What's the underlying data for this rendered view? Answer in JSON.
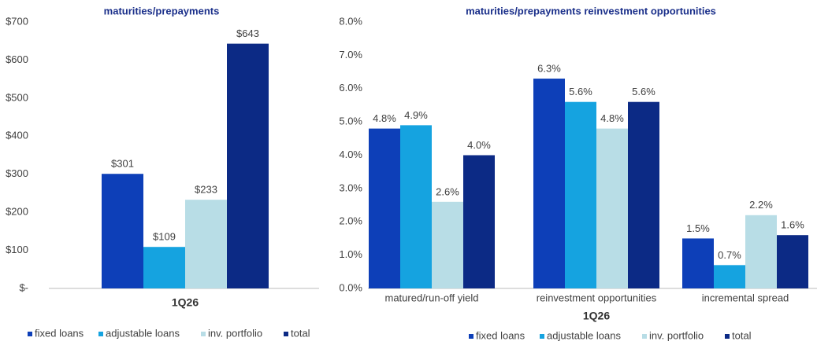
{
  "chart_data": [
    {
      "type": "bar",
      "title": "maturities/prepayments",
      "categories": [
        "1Q26"
      ],
      "series": [
        {
          "name": "fixed loans",
          "color": "#0d3fb8",
          "values": [
            301
          ],
          "value_labels": [
            "$301"
          ]
        },
        {
          "name": "adjustable loans",
          "color": "#15a3e0",
          "values": [
            109
          ],
          "value_labels": [
            "$109"
          ]
        },
        {
          "name": "inv. portfolio",
          "color": "#b8dde6",
          "values": [
            233
          ],
          "value_labels": [
            "$233"
          ]
        },
        {
          "name": "total",
          "color": "#0c2a85",
          "values": [
            643
          ],
          "value_labels": [
            "$643"
          ]
        }
      ],
      "ylim": [
        0,
        700
      ],
      "yticks": [
        {
          "value": 0,
          "label": "$-"
        },
        {
          "value": 100,
          "label": "$100"
        },
        {
          "value": 200,
          "label": "$200"
        },
        {
          "value": 300,
          "label": "$300"
        },
        {
          "value": 400,
          "label": "$400"
        },
        {
          "value": 500,
          "label": "$500"
        },
        {
          "value": 600,
          "label": "$600"
        },
        {
          "value": 700,
          "label": "$700"
        }
      ],
      "grid": false
    },
    {
      "type": "bar",
      "title": "maturities/prepayments reinvestment opportunities",
      "xlabel": "1Q26",
      "categories": [
        "matured/run-off yield",
        "reinvestment opportunities",
        "incremental spread"
      ],
      "series": [
        {
          "name": "fixed loans",
          "color": "#0d3fb8",
          "values": [
            4.8,
            6.3,
            1.5
          ],
          "value_labels": [
            "4.8%",
            "6.3%",
            "1.5%"
          ]
        },
        {
          "name": "adjustable loans",
          "color": "#15a3e0",
          "values": [
            4.9,
            5.6,
            0.7
          ],
          "value_labels": [
            "4.9%",
            "5.6%",
            "0.7%"
          ]
        },
        {
          "name": "inv. portfolio",
          "color": "#b8dde6",
          "values": [
            2.6,
            4.8,
            2.2
          ],
          "value_labels": [
            "2.6%",
            "4.8%",
            "2.2%"
          ]
        },
        {
          "name": "total",
          "color": "#0c2a85",
          "values": [
            4.0,
            5.6,
            1.6
          ],
          "value_labels": [
            "4.0%",
            "5.6%",
            "1.6%"
          ]
        }
      ],
      "ylim": [
        0,
        8
      ],
      "yticks": [
        {
          "value": 0,
          "label": "0.0%"
        },
        {
          "value": 1,
          "label": "1.0%"
        },
        {
          "value": 2,
          "label": "2.0%"
        },
        {
          "value": 3,
          "label": "3.0%"
        },
        {
          "value": 4,
          "label": "4.0%"
        },
        {
          "value": 5,
          "label": "5.0%"
        },
        {
          "value": 6,
          "label": "6.0%"
        },
        {
          "value": 7,
          "label": "7.0%"
        },
        {
          "value": 8,
          "label": "8.0%"
        }
      ],
      "grid": false
    }
  ]
}
